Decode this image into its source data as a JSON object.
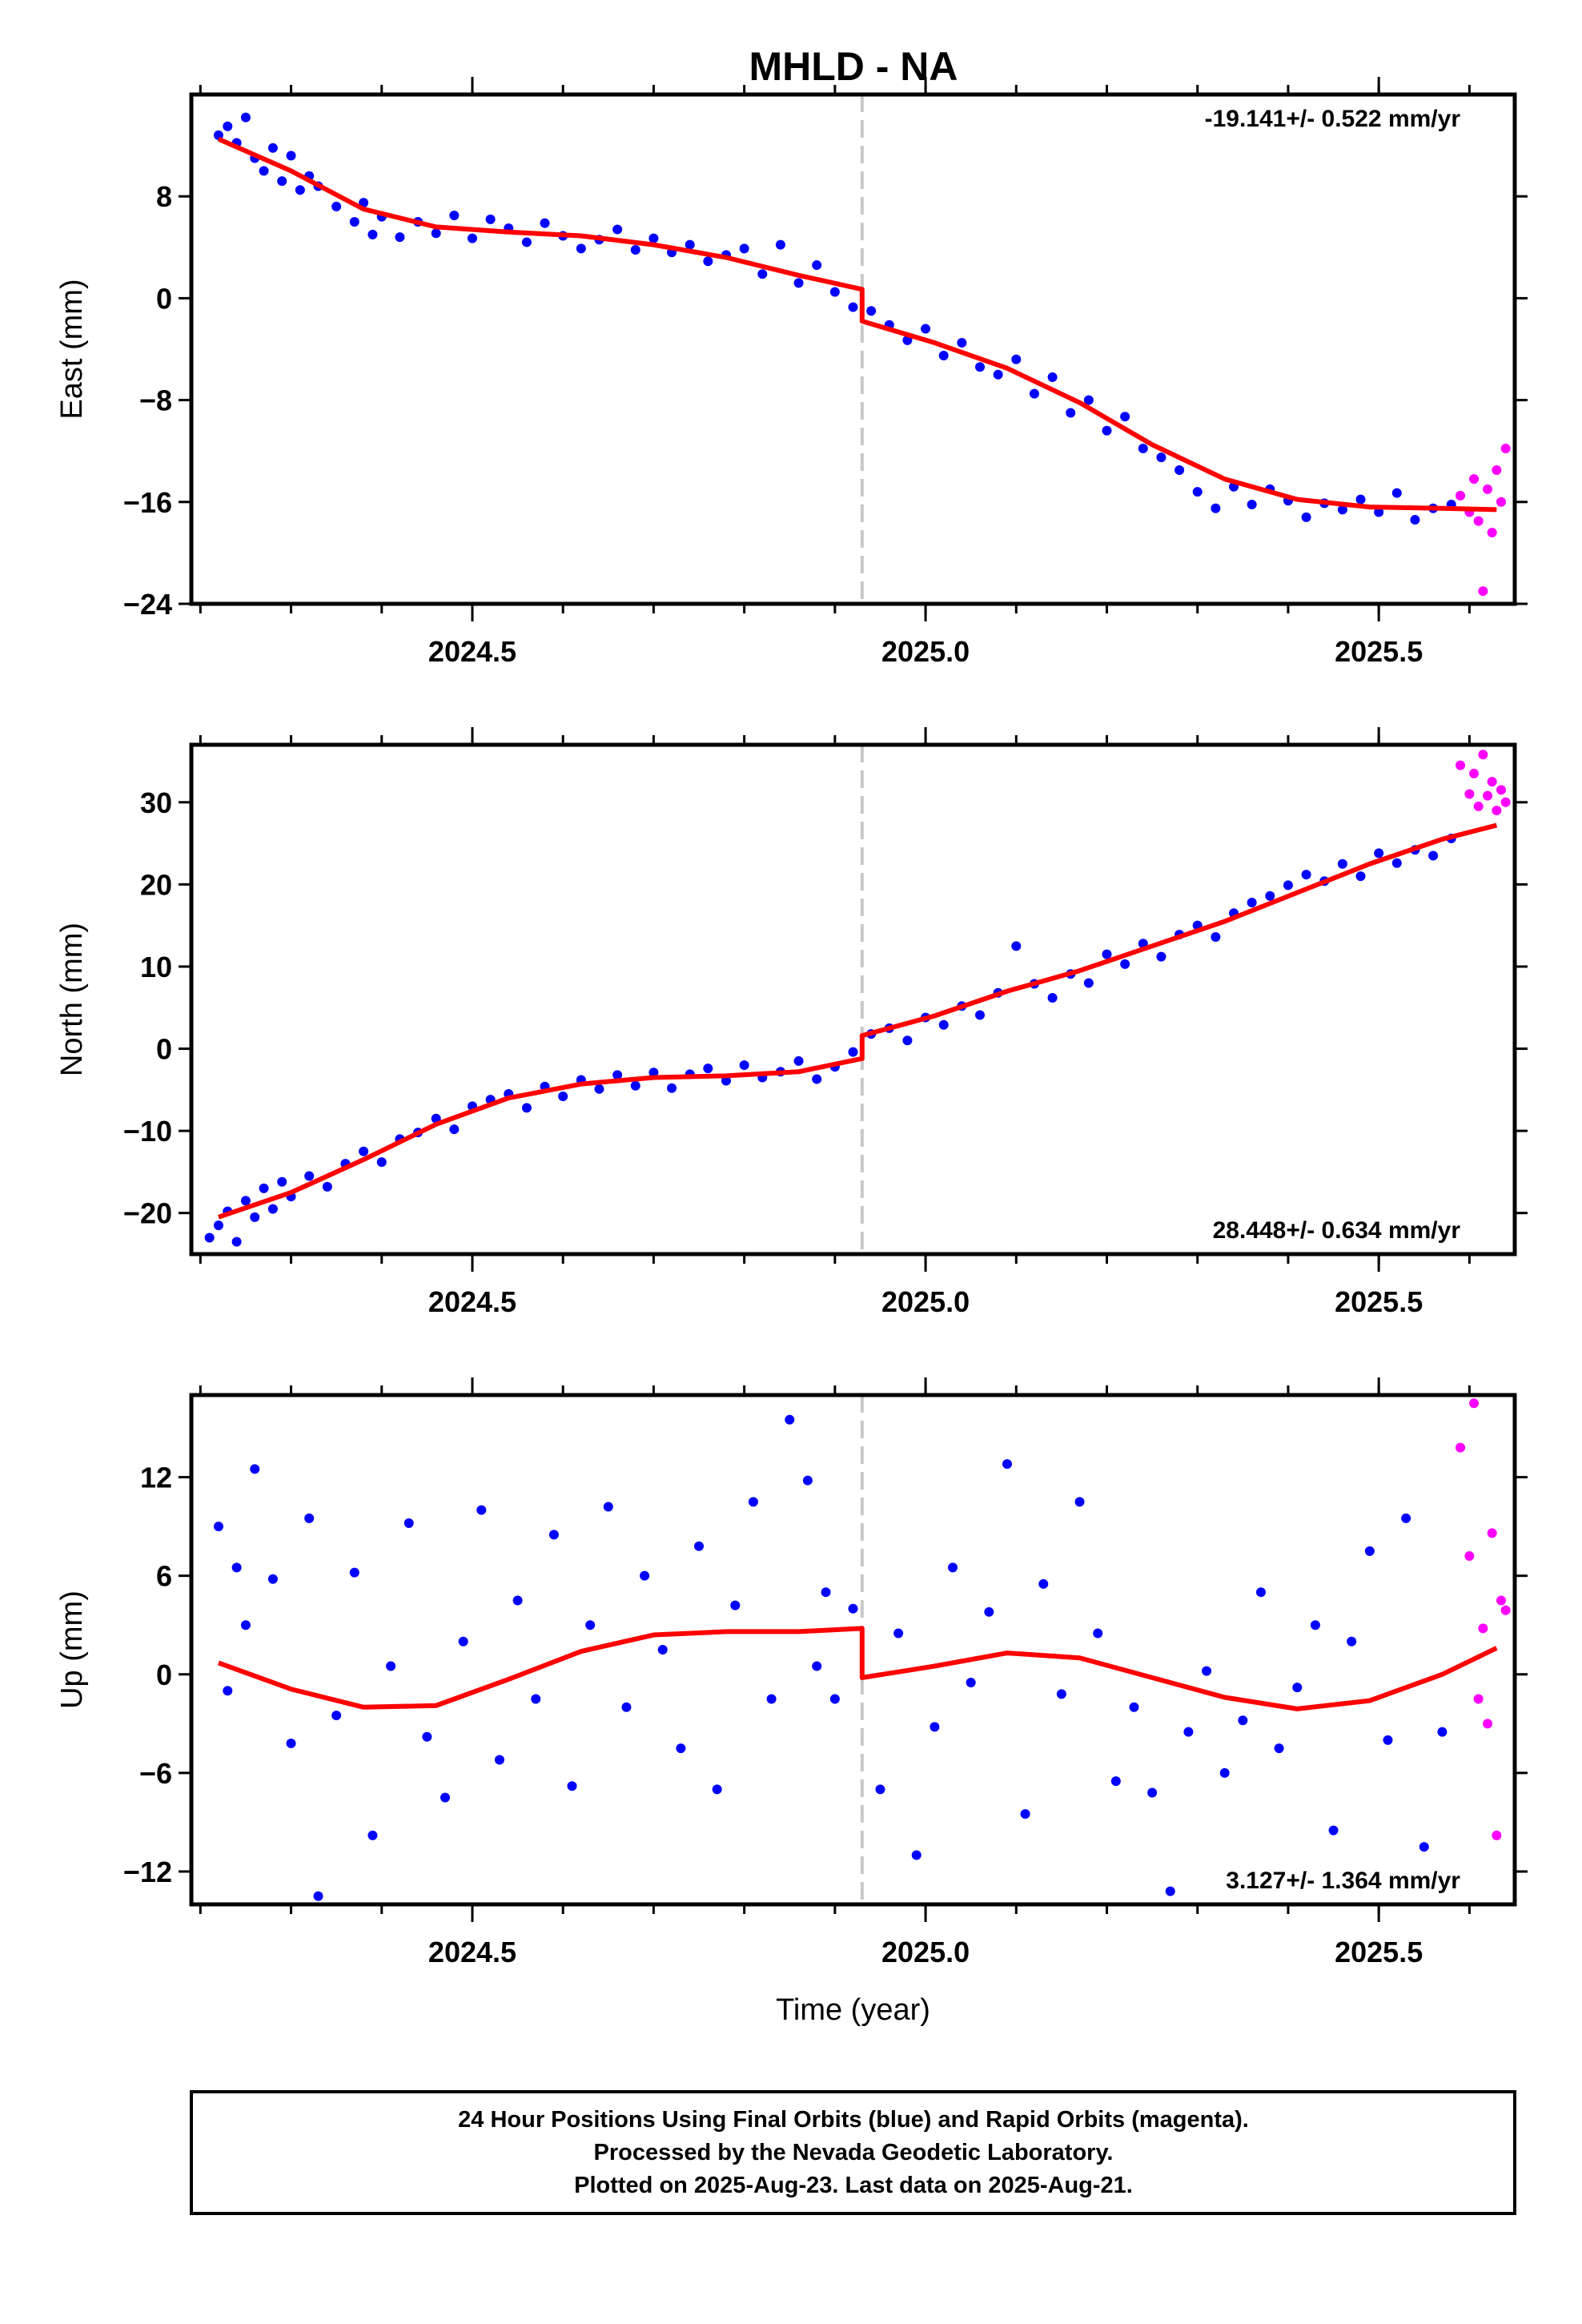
{
  "title": "MHLD - NA",
  "footer": {
    "lines": [
      "24 Hour Positions Using Final Orbits (blue) and Rapid Orbits (magenta).",
      "Processed by the Nevada Geodetic Laboratory.",
      "Plotted on 2025-Aug-23. Last data on 2025-Aug-21."
    ]
  },
  "colors": {
    "final": "#0000ff",
    "rapid": "#ff00ff",
    "model": "#ff0000",
    "equipment_change": "#c8c8c8"
  },
  "chart_data": [
    {
      "type": "scatter",
      "name": "east",
      "ylabel": "East (mm)",
      "xlabel": "",
      "rate_label": "-19.141+/- 0.522 mm/yr",
      "xlim": [
        2024.19,
        2025.65
      ],
      "ylim": [
        -24,
        16
      ],
      "yticks": [
        -24,
        -16,
        -8,
        0,
        8
      ],
      "xticks": [
        2024.5,
        2025.0,
        2025.5
      ],
      "xtick_labels": [
        "2024.5",
        "2025.0",
        "2025.5"
      ],
      "equipment_change_x": 2024.93,
      "model_x": [
        2024.22,
        2024.3,
        2024.38,
        2024.46,
        2024.54,
        2024.62,
        2024.7,
        2024.78,
        2024.86,
        2024.93,
        2024.93,
        2025.01,
        2025.09,
        2025.17,
        2025.25,
        2025.33,
        2025.41,
        2025.49,
        2025.57,
        2025.63
      ],
      "model_y": [
        12.5,
        10.0,
        7.0,
        5.6,
        5.2,
        4.9,
        4.2,
        3.2,
        1.8,
        0.7,
        -1.8,
        -3.5,
        -5.5,
        -8.2,
        -11.5,
        -14.2,
        -15.8,
        -16.4,
        -16.5,
        -16.6
      ],
      "final": {
        "x": [
          2024.22,
          2024.23,
          2024.24,
          2024.25,
          2024.26,
          2024.27,
          2024.28,
          2024.29,
          2024.3,
          2024.31,
          2024.32,
          2024.33,
          2024.35,
          2024.37,
          2024.38,
          2024.39,
          2024.4,
          2024.42,
          2024.44,
          2024.46,
          2024.48,
          2024.5,
          2024.52,
          2024.54,
          2024.56,
          2024.58,
          2024.6,
          2024.62,
          2024.64,
          2024.66,
          2024.68,
          2024.7,
          2024.72,
          2024.74,
          2024.76,
          2024.78,
          2024.8,
          2024.82,
          2024.84,
          2024.86,
          2024.88,
          2024.9,
          2024.92,
          2024.94,
          2024.96,
          2024.98,
          2025.0,
          2025.02,
          2025.04,
          2025.06,
          2025.08,
          2025.1,
          2025.12,
          2025.14,
          2025.16,
          2025.18,
          2025.2,
          2025.22,
          2025.24,
          2025.26,
          2025.28,
          2025.3,
          2025.32,
          2025.34,
          2025.36,
          2025.38,
          2025.4,
          2025.42,
          2025.44,
          2025.46,
          2025.48,
          2025.5,
          2025.52,
          2025.54,
          2025.56,
          2025.58
        ],
        "y": [
          12.8,
          13.5,
          12.2,
          14.2,
          11.0,
          10.0,
          11.8,
          9.2,
          11.2,
          8.5,
          9.6,
          8.8,
          7.2,
          6.0,
          7.5,
          5.0,
          6.4,
          4.8,
          6.0,
          5.1,
          6.5,
          4.7,
          6.2,
          5.5,
          4.4,
          5.9,
          4.9,
          3.9,
          4.6,
          5.4,
          3.8,
          4.7,
          3.6,
          4.2,
          2.9,
          3.4,
          3.9,
          1.9,
          4.2,
          1.2,
          2.6,
          0.5,
          -0.7,
          -1.0,
          -2.1,
          -3.3,
          -2.4,
          -4.5,
          -3.5,
          -5.4,
          -6.0,
          -4.8,
          -7.5,
          -6.2,
          -9.0,
          -8.0,
          -10.4,
          -9.3,
          -11.8,
          -12.5,
          -13.5,
          -15.2,
          -16.5,
          -14.8,
          -16.2,
          -15.0,
          -15.9,
          -17.2,
          -16.1,
          -16.6,
          -15.8,
          -16.8,
          -15.3,
          -17.4,
          -16.5,
          -16.2
        ]
      },
      "rapid": {
        "x": [
          2025.59,
          2025.6,
          2025.605,
          2025.61,
          2025.615,
          2025.62,
          2025.625,
          2025.63,
          2025.635,
          2025.64
        ],
        "y": [
          -15.5,
          -16.8,
          -14.2,
          -17.5,
          -23.0,
          -15.0,
          -18.4,
          -13.5,
          -16.0,
          -11.8
        ]
      }
    },
    {
      "type": "scatter",
      "name": "north",
      "ylabel": "North (mm)",
      "xlabel": "",
      "rate_label": "28.448+/- 0.634 mm/yr",
      "xlim": [
        2024.19,
        2025.65
      ],
      "ylim": [
        -25,
        37
      ],
      "yticks": [
        -20,
        -10,
        0,
        10,
        20,
        30
      ],
      "xticks": [
        2024.5,
        2025.0,
        2025.5
      ],
      "xtick_labels": [
        "2024.5",
        "2025.0",
        "2025.5"
      ],
      "equipment_change_x": 2024.93,
      "model_x": [
        2024.22,
        2024.3,
        2024.38,
        2024.46,
        2024.54,
        2024.62,
        2024.7,
        2024.78,
        2024.86,
        2024.93,
        2024.93,
        2025.01,
        2025.09,
        2025.17,
        2025.25,
        2025.33,
        2025.41,
        2025.49,
        2025.57,
        2025.63
      ],
      "model_y": [
        -20.5,
        -17.5,
        -13.5,
        -9.2,
        -6.0,
        -4.3,
        -3.5,
        -3.3,
        -2.8,
        -1.2,
        1.6,
        4.0,
        7.0,
        9.5,
        12.5,
        15.5,
        19.0,
        22.5,
        25.5,
        27.2
      ],
      "final": {
        "x": [
          2024.21,
          2024.22,
          2024.23,
          2024.24,
          2024.25,
          2024.26,
          2024.27,
          2024.28,
          2024.29,
          2024.3,
          2024.32,
          2024.34,
          2024.36,
          2024.38,
          2024.4,
          2024.42,
          2024.44,
          2024.46,
          2024.48,
          2024.5,
          2024.52,
          2024.54,
          2024.56,
          2024.58,
          2024.6,
          2024.62,
          2024.64,
          2024.66,
          2024.68,
          2024.7,
          2024.72,
          2024.74,
          2024.76,
          2024.78,
          2024.8,
          2024.82,
          2024.84,
          2024.86,
          2024.88,
          2024.9,
          2024.92,
          2024.94,
          2024.96,
          2024.98,
          2025.0,
          2025.02,
          2025.04,
          2025.06,
          2025.08,
          2025.1,
          2025.12,
          2025.14,
          2025.16,
          2025.18,
          2025.2,
          2025.22,
          2025.24,
          2025.26,
          2025.28,
          2025.3,
          2025.32,
          2025.34,
          2025.36,
          2025.38,
          2025.4,
          2025.42,
          2025.44,
          2025.46,
          2025.48,
          2025.5,
          2025.52,
          2025.54,
          2025.56,
          2025.58
        ],
        "y": [
          -23.0,
          -21.5,
          -19.8,
          -23.5,
          -18.5,
          -20.5,
          -17.0,
          -19.5,
          -16.2,
          -18.0,
          -15.5,
          -16.8,
          -14.0,
          -12.5,
          -13.8,
          -11.0,
          -10.2,
          -8.5,
          -9.8,
          -7.0,
          -6.2,
          -5.5,
          -7.2,
          -4.6,
          -5.8,
          -3.8,
          -4.9,
          -3.2,
          -4.5,
          -2.9,
          -4.8,
          -3.1,
          -2.4,
          -3.9,
          -2.0,
          -3.5,
          -2.8,
          -1.5,
          -3.7,
          -2.2,
          -0.4,
          1.8,
          2.5,
          1.0,
          3.8,
          2.9,
          5.2,
          4.1,
          6.8,
          12.5,
          7.9,
          6.2,
          9.1,
          8.0,
          11.5,
          10.3,
          12.8,
          11.2,
          13.9,
          15.0,
          13.6,
          16.5,
          17.8,
          18.6,
          19.9,
          21.2,
          20.4,
          22.5,
          21.0,
          23.8,
          22.6,
          24.2,
          23.5,
          25.6
        ]
      },
      "rapid": {
        "x": [
          2025.59,
          2025.6,
          2025.605,
          2025.61,
          2025.615,
          2025.62,
          2025.625,
          2025.63,
          2025.635,
          2025.64
        ],
        "y": [
          34.5,
          31.0,
          33.5,
          29.5,
          35.8,
          30.8,
          32.5,
          29.0,
          31.5,
          30.0
        ]
      }
    },
    {
      "type": "scatter",
      "name": "up",
      "ylabel": "Up (mm)",
      "xlabel": "Time (year)",
      "rate_label": "3.127+/- 1.364 mm/yr",
      "xlim": [
        2024.19,
        2025.65
      ],
      "ylim": [
        -14,
        17
      ],
      "yticks": [
        -12,
        -6,
        0,
        6,
        12
      ],
      "xticks": [
        2024.5,
        2025.0,
        2025.5
      ],
      "xtick_labels": [
        "2024.5",
        "2025.0",
        "2025.5"
      ],
      "equipment_change_x": 2024.93,
      "model_x": [
        2024.22,
        2024.3,
        2024.38,
        2024.46,
        2024.54,
        2024.62,
        2024.7,
        2024.78,
        2024.86,
        2024.93,
        2024.93,
        2025.01,
        2025.09,
        2025.17,
        2025.25,
        2025.33,
        2025.41,
        2025.49,
        2025.57,
        2025.63
      ],
      "model_y": [
        0.7,
        -0.9,
        -2.0,
        -1.9,
        -0.3,
        1.4,
        2.4,
        2.6,
        2.6,
        2.8,
        -0.2,
        0.5,
        1.3,
        1.0,
        -0.2,
        -1.4,
        -2.1,
        -1.6,
        0.0,
        1.6
      ],
      "final": {
        "x": [
          2024.22,
          2024.23,
          2024.24,
          2024.25,
          2024.26,
          2024.28,
          2024.3,
          2024.32,
          2024.33,
          2024.35,
          2024.37,
          2024.39,
          2024.41,
          2024.43,
          2024.45,
          2024.47,
          2024.49,
          2024.51,
          2024.53,
          2024.55,
          2024.57,
          2024.59,
          2024.61,
          2024.63,
          2024.65,
          2024.67,
          2024.69,
          2024.71,
          2024.73,
          2024.75,
          2024.77,
          2024.79,
          2024.81,
          2024.83,
          2024.85,
          2024.87,
          2024.88,
          2024.89,
          2024.9,
          2024.92,
          2024.95,
          2024.97,
          2024.99,
          2025.01,
          2025.03,
          2025.05,
          2025.07,
          2025.09,
          2025.11,
          2025.13,
          2025.15,
          2025.17,
          2025.19,
          2025.21,
          2025.23,
          2025.25,
          2025.27,
          2025.29,
          2025.31,
          2025.33,
          2025.35,
          2025.37,
          2025.39,
          2025.41,
          2025.43,
          2025.45,
          2025.47,
          2025.49,
          2025.51,
          2025.53,
          2025.55,
          2025.57
        ],
        "y": [
          9.0,
          -1.0,
          6.5,
          3.0,
          12.5,
          5.8,
          -4.2,
          9.5,
          -13.5,
          -2.5,
          6.2,
          -9.8,
          0.5,
          9.2,
          -3.8,
          -7.5,
          2.0,
          10.0,
          -5.2,
          4.5,
          -1.5,
          8.5,
          -6.8,
          3.0,
          10.2,
          -2.0,
          6.0,
          1.5,
          -4.5,
          7.8,
          -7.0,
          4.2,
          10.5,
          -1.5,
          15.5,
          11.8,
          0.5,
          5.0,
          -1.5,
          4.0,
          -7.0,
          2.5,
          -11.0,
          -3.2,
          6.5,
          -0.5,
          3.8,
          12.8,
          -8.5,
          5.5,
          -1.2,
          10.5,
          2.5,
          -6.5,
          -2.0,
          -7.2,
          -13.2,
          -3.5,
          0.2,
          -6.0,
          -2.8,
          5.0,
          -4.5,
          -0.8,
          3.0,
          -9.5,
          2.0,
          7.5,
          -4.0,
          9.5,
          -10.5,
          -3.5
        ]
      },
      "rapid": {
        "x": [
          2025.59,
          2025.6,
          2025.605,
          2025.61,
          2025.615,
          2025.62,
          2025.625,
          2025.63,
          2025.635,
          2025.64
        ],
        "y": [
          13.8,
          7.2,
          16.5,
          -1.5,
          2.8,
          -3.0,
          8.6,
          -9.8,
          4.5,
          3.9
        ]
      }
    }
  ]
}
